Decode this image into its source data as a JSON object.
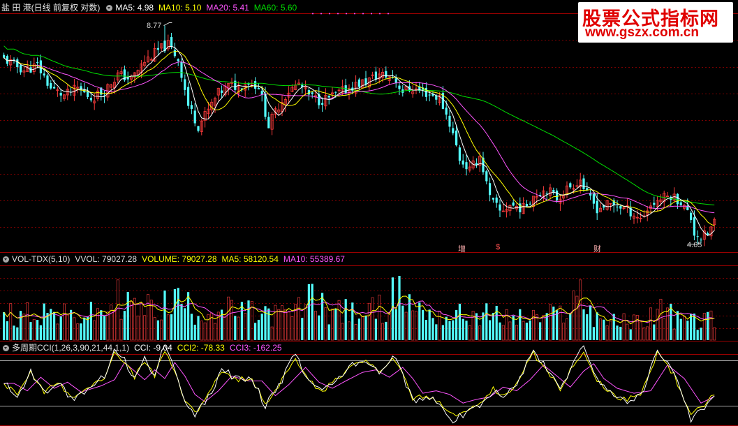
{
  "price_header": {
    "stock_name": "盐 田 港",
    "period": "(日线 前复权 对数)",
    "ma5_label": "MA5: 4.98",
    "ma10_label": "MA10: 5.10",
    "ma20_label": "MA20: 5.41",
    "ma60_label": "MA60: 5.60"
  },
  "volume_header": {
    "indicator": "VOL-TDX(5,10)",
    "vvol_label": "VVOL: 79027.28",
    "volume_label": "VOLUME: 79027.28",
    "ma5_label": "MA5: 58120.54",
    "ma10_label": "MA10: 55389.67"
  },
  "cci_header": {
    "indicator": "多周期CCI(1,26,3,90,21,44,1,1)",
    "cci_label": "CCI: -9.04",
    "cci2_label": "CCI2: -78.33",
    "cci3_label": "CCI3: -162.25"
  },
  "watermark": {
    "line1": "股票公式指标网",
    "line2": "www.gszx.com.cn"
  },
  "annotations": {
    "high_label": "8.77",
    "low_label": "4.65",
    "marker1": "增",
    "marker2": "$",
    "marker3": "财"
  },
  "colors": {
    "up": "#ff3c3c",
    "down": "#54ffff",
    "ma5": "#ffffff",
    "ma10": "#ffff00",
    "ma20": "#ff55ff",
    "ma60": "#00dd00",
    "grid": "#7a0000"
  },
  "chart_data": {
    "type": "candlestick",
    "scale": "log",
    "high_marker": 8.77,
    "low_marker": 4.65,
    "price_anchors": [
      [
        0,
        7.95
      ],
      [
        6,
        7.7
      ],
      [
        10,
        7.8
      ],
      [
        14,
        7.3
      ],
      [
        18,
        7.15
      ],
      [
        22,
        7.3
      ],
      [
        26,
        7.1
      ],
      [
        30,
        7.25
      ],
      [
        34,
        7.6
      ],
      [
        38,
        7.5
      ],
      [
        42,
        7.9
      ],
      [
        46,
        8.15
      ],
      [
        49,
        8.3
      ],
      [
        52,
        7.95
      ],
      [
        55,
        6.95
      ],
      [
        58,
        6.55
      ],
      [
        61,
        6.85
      ],
      [
        64,
        7.2
      ],
      [
        67,
        7.35
      ],
      [
        70,
        7.35
      ],
      [
        73,
        7.45
      ],
      [
        76,
        7.35
      ],
      [
        79,
        6.55
      ],
      [
        82,
        6.95
      ],
      [
        85,
        7.25
      ],
      [
        88,
        7.4
      ],
      [
        91,
        7.15
      ],
      [
        94,
        7.05
      ],
      [
        97,
        7.1
      ],
      [
        100,
        7.2
      ],
      [
        104,
        7.35
      ],
      [
        108,
        7.45
      ],
      [
        112,
        7.6
      ],
      [
        116,
        7.55
      ],
      [
        119,
        7.25
      ],
      [
        122,
        7.3
      ],
      [
        126,
        7.2
      ],
      [
        130,
        7.1
      ],
      [
        133,
        6.6
      ],
      [
        136,
        5.95
      ],
      [
        139,
        5.75
      ],
      [
        142,
        6.0
      ],
      [
        145,
        5.3
      ],
      [
        148,
        5.1
      ],
      [
        151,
        5.2
      ],
      [
        155,
        5.15
      ],
      [
        158,
        5.35
      ],
      [
        162,
        5.45
      ],
      [
        165,
        5.3
      ],
      [
        168,
        5.45
      ],
      [
        172,
        5.6
      ],
      [
        174,
        5.35
      ],
      [
        177,
        5.15
      ],
      [
        180,
        5.2
      ],
      [
        183,
        5.2
      ],
      [
        187,
        5.1
      ],
      [
        190,
        5.0
      ],
      [
        193,
        5.2
      ],
      [
        196,
        5.3
      ],
      [
        199,
        5.35
      ],
      [
        202,
        5.25
      ],
      [
        205,
        5.0
      ],
      [
        206,
        4.8
      ],
      [
        208,
        4.73
      ],
      [
        210,
        4.78
      ],
      [
        212,
        4.95
      ]
    ],
    "volume_anchors": [
      [
        0,
        4.0
      ],
      [
        10,
        5.0
      ],
      [
        20,
        3.8
      ],
      [
        30,
        4.6
      ],
      [
        34,
        7.5
      ],
      [
        40,
        5.0
      ],
      [
        46,
        5.5
      ],
      [
        52,
        6.5
      ],
      [
        58,
        4.8
      ],
      [
        66,
        5.0
      ],
      [
        76,
        4.3
      ],
      [
        86,
        4.2
      ],
      [
        92,
        7.0
      ],
      [
        98,
        5.0
      ],
      [
        106,
        4.2
      ],
      [
        112,
        5.2
      ],
      [
        118,
        8.0
      ],
      [
        124,
        5.0
      ],
      [
        132,
        4.0
      ],
      [
        142,
        4.3
      ],
      [
        150,
        3.8
      ],
      [
        158,
        3.6
      ],
      [
        166,
        4.4
      ],
      [
        172,
        7.5
      ],
      [
        176,
        4.2
      ],
      [
        182,
        3.0
      ],
      [
        190,
        3.1
      ],
      [
        196,
        5.1
      ],
      [
        202,
        3.2
      ],
      [
        208,
        3.2
      ],
      [
        212,
        3.6
      ]
    ],
    "cci_anchors": [
      [
        0,
        0.0
      ],
      [
        4,
        -0.6
      ],
      [
        8,
        0.5
      ],
      [
        12,
        -0.4
      ],
      [
        16,
        0.1
      ],
      [
        20,
        -0.7
      ],
      [
        26,
        -0.2
      ],
      [
        30,
        0.3
      ],
      [
        33,
        1.7
      ],
      [
        36,
        1.0
      ],
      [
        39,
        0.3
      ],
      [
        42,
        1.1
      ],
      [
        45,
        0.4
      ],
      [
        48,
        1.7
      ],
      [
        51,
        0.6
      ],
      [
        54,
        -0.9
      ],
      [
        57,
        -1.5
      ],
      [
        61,
        -0.6
      ],
      [
        65,
        0.6
      ],
      [
        70,
        0.2
      ],
      [
        74,
        0.2
      ],
      [
        78,
        -1.0
      ],
      [
        82,
        -0.1
      ],
      [
        87,
        1.3
      ],
      [
        91,
        0.1
      ],
      [
        95,
        -0.4
      ],
      [
        99,
        0.2
      ],
      [
        104,
        0.9
      ],
      [
        108,
        1.1
      ],
      [
        112,
        0.5
      ],
      [
        116,
        1.3
      ],
      [
        119,
        0.4
      ],
      [
        122,
        -0.8
      ],
      [
        126,
        -0.6
      ],
      [
        130,
        -0.9
      ],
      [
        134,
        -1.6
      ],
      [
        138,
        -1.3
      ],
      [
        142,
        -1.1
      ],
      [
        146,
        -0.3
      ],
      [
        150,
        -0.6
      ],
      [
        154,
        0.3
      ],
      [
        158,
        1.5
      ],
      [
        162,
        0.6
      ],
      [
        166,
        -0.3
      ],
      [
        170,
        1.0
      ],
      [
        173,
        1.6
      ],
      [
        176,
        0.4
      ],
      [
        180,
        -0.4
      ],
      [
        185,
        -0.8
      ],
      [
        190,
        -0.6
      ],
      [
        195,
        1.5
      ],
      [
        200,
        0.4
      ],
      [
        205,
        -1.6
      ],
      [
        208,
        -1.2
      ],
      [
        212,
        -0.5
      ]
    ]
  }
}
